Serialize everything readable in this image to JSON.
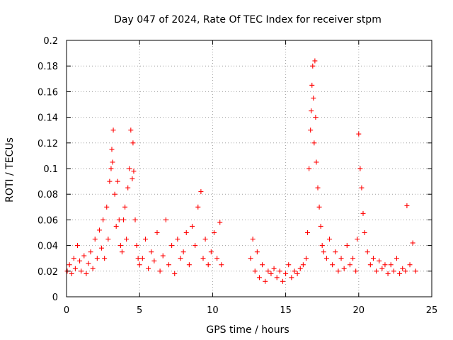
{
  "chart_data": {
    "type": "scatter",
    "title": "Day 047 of 2024, Rate Of TEC Index for receiver stpm",
    "xlabel": "GPS time / hours",
    "ylabel": "ROTI / TECUs",
    "xlim": [
      0,
      25
    ],
    "ylim": [
      0,
      0.2
    ],
    "xticks": [
      0,
      5,
      10,
      15,
      20,
      25
    ],
    "xtick_labels": [
      "0",
      "5",
      "10",
      "15",
      "20",
      "25"
    ],
    "yticks": [
      0,
      0.02,
      0.04,
      0.06,
      0.08,
      0.1,
      0.12,
      0.14,
      0.16,
      0.18,
      0.2
    ],
    "ytick_labels": [
      "0",
      "0.02",
      "0.04",
      "0.06",
      "0.08",
      "0.1",
      "0.12",
      "0.14",
      "0.16",
      "0.18",
      "0.2"
    ],
    "grid": true,
    "marker": "+",
    "color": "#ff0000",
    "series": [
      {
        "name": "ROTI",
        "x": [
          0.05,
          0.2,
          0.35,
          0.5,
          0.6,
          0.75,
          0.9,
          1.0,
          1.2,
          1.35,
          1.5,
          1.65,
          1.8,
          1.95,
          2.1,
          2.25,
          2.4,
          2.5,
          2.6,
          2.75,
          2.85,
          2.95,
          3.05,
          3.1,
          3.15,
          3.2,
          3.3,
          3.4,
          3.5,
          3.6,
          3.7,
          3.8,
          3.9,
          4.0,
          4.1,
          4.2,
          4.3,
          4.4,
          4.5,
          4.55,
          4.6,
          4.7,
          4.8,
          4.9,
          5.0,
          5.2,
          5.4,
          5.6,
          5.8,
          6.0,
          6.2,
          6.4,
          6.6,
          6.8,
          7.0,
          7.2,
          7.4,
          7.6,
          7.8,
          8.0,
          8.2,
          8.4,
          8.6,
          8.8,
          9.0,
          9.2,
          9.35,
          9.5,
          9.7,
          9.9,
          10.1,
          10.3,
          10.5,
          10.6,
          12.6,
          12.75,
          12.9,
          13.05,
          13.2,
          13.4,
          13.6,
          13.8,
          14.0,
          14.2,
          14.4,
          14.6,
          14.8,
          15.0,
          15.2,
          15.4,
          15.6,
          15.8,
          16.0,
          16.2,
          16.4,
          16.5,
          16.6,
          16.7,
          16.75,
          16.8,
          16.85,
          16.9,
          16.95,
          17.0,
          17.05,
          17.1,
          17.2,
          17.3,
          17.4,
          17.5,
          17.6,
          17.8,
          18.0,
          18.2,
          18.4,
          18.6,
          18.8,
          19.0,
          19.2,
          19.4,
          19.6,
          19.8,
          19.9,
          20.0,
          20.1,
          20.2,
          20.3,
          20.4,
          20.6,
          20.8,
          21.0,
          21.2,
          21.4,
          21.6,
          21.8,
          22.0,
          22.2,
          22.4,
          22.6,
          22.8,
          23.0,
          23.2,
          23.3,
          23.5,
          23.7,
          23.9
        ],
        "y": [
          0.02,
          0.025,
          0.018,
          0.03,
          0.022,
          0.04,
          0.028,
          0.02,
          0.032,
          0.018,
          0.026,
          0.035,
          0.022,
          0.045,
          0.03,
          0.052,
          0.038,
          0.06,
          0.03,
          0.07,
          0.045,
          0.09,
          0.1,
          0.115,
          0.105,
          0.13,
          0.08,
          0.055,
          0.09,
          0.06,
          0.04,
          0.035,
          0.06,
          0.07,
          0.045,
          0.085,
          0.1,
          0.13,
          0.092,
          0.12,
          0.098,
          0.06,
          0.04,
          0.03,
          0.025,
          0.03,
          0.045,
          0.022,
          0.035,
          0.028,
          0.05,
          0.02,
          0.032,
          0.06,
          0.025,
          0.04,
          0.018,
          0.045,
          0.03,
          0.035,
          0.05,
          0.025,
          0.055,
          0.04,
          0.07,
          0.082,
          0.03,
          0.045,
          0.025,
          0.035,
          0.05,
          0.03,
          0.058,
          0.025,
          0.03,
          0.045,
          0.02,
          0.035,
          0.015,
          0.025,
          0.012,
          0.02,
          0.018,
          0.022,
          0.015,
          0.02,
          0.012,
          0.018,
          0.025,
          0.015,
          0.02,
          0.018,
          0.022,
          0.025,
          0.03,
          0.05,
          0.1,
          0.13,
          0.145,
          0.165,
          0.18,
          0.155,
          0.12,
          0.184,
          0.14,
          0.105,
          0.085,
          0.07,
          0.055,
          0.04,
          0.035,
          0.03,
          0.045,
          0.025,
          0.035,
          0.02,
          0.03,
          0.022,
          0.04,
          0.025,
          0.03,
          0.02,
          0.045,
          0.127,
          0.1,
          0.085,
          0.065,
          0.05,
          0.035,
          0.025,
          0.03,
          0.02,
          0.028,
          0.022,
          0.025,
          0.018,
          0.025,
          0.02,
          0.03,
          0.018,
          0.022,
          0.02,
          0.071,
          0.025,
          0.042,
          0.02
        ]
      }
    ]
  }
}
